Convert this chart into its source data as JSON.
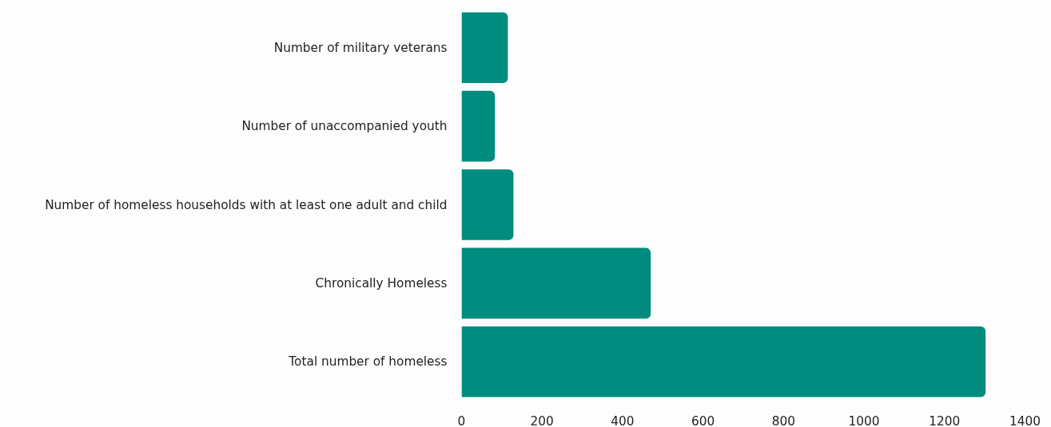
{
  "chart_data": {
    "type": "bar",
    "orientation": "horizontal",
    "categories": [
      "Number of military veterans",
      "Number of unaccompanied youth",
      "Number of homeless households with at least one adult and child",
      "Chronically Homeless",
      "Total number of homeless"
    ],
    "values": [
      115,
      83,
      129,
      470,
      1302
    ],
    "color": "#008c7e",
    "xlim": [
      0,
      1400
    ],
    "xticks": [
      0,
      200,
      400,
      600,
      800,
      1000,
      1200,
      1400
    ],
    "grid": false
  }
}
